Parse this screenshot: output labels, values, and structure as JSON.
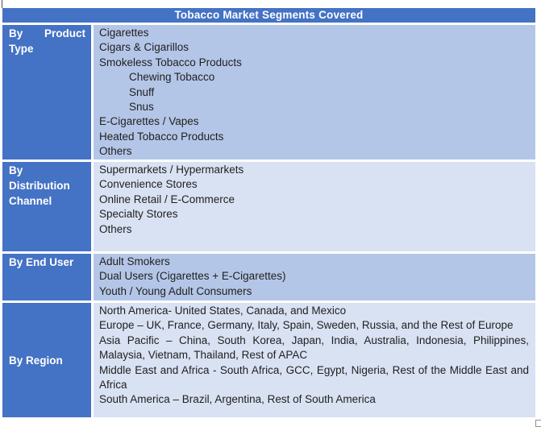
{
  "table": {
    "title": "Tobacco Market Segments Covered",
    "rows": [
      {
        "key": "product-type",
        "label": "By Product Type",
        "band": "a",
        "items": [
          {
            "text": "Cigarettes",
            "indent": false
          },
          {
            "text": "Cigars & Cigarillos",
            "indent": false
          },
          {
            "text": "Smokeless Tobacco Products",
            "indent": false
          },
          {
            "text": "Chewing Tobacco",
            "indent": true
          },
          {
            "text": "Snuff",
            "indent": true
          },
          {
            "text": "Snus",
            "indent": true
          },
          {
            "text": "E-Cigarettes / Vapes",
            "indent": false
          },
          {
            "text": "Heated Tobacco Products",
            "indent": false
          },
          {
            "text": "Others",
            "indent": false
          }
        ]
      },
      {
        "key": "distribution-channel",
        "label": "By Distribution Channel",
        "band": "b",
        "items": [
          {
            "text": "Supermarkets / Hypermarkets",
            "indent": false
          },
          {
            "text": "Convenience Stores",
            "indent": false
          },
          {
            "text": "Online Retail / E-Commerce",
            "indent": false
          },
          {
            "text": "Specialty Stores",
            "indent": false
          },
          {
            "text": "Others",
            "indent": false
          }
        ]
      },
      {
        "key": "end-user",
        "label": "By End User",
        "band": "a",
        "items": [
          {
            "text": "Adult Smokers",
            "indent": false
          },
          {
            "text": "Dual Users (Cigarettes + E-Cigarettes)",
            "indent": false
          },
          {
            "text": "Youth / Young Adult Consumers",
            "indent": false
          }
        ]
      },
      {
        "key": "region",
        "label": "By Region",
        "band": "b",
        "label_valign": "middle",
        "items": [
          {
            "text": "North America- United States, Canada, and Mexico",
            "indent": false
          },
          {
            "text": "Europe – UK, France, Germany, Italy, Spain, Sweden, Russia, and the Rest of Europe",
            "indent": false
          },
          {
            "text": "Asia Pacific – China, South Korea, Japan, India, Australia, Indonesia, Philippines, Malaysia, Vietnam, Thailand, Rest of APAC",
            "indent": false
          },
          {
            "text": "Middle East and Africa - South Africa, GCC, Egypt, Nigeria, Rest of the Middle East and Africa",
            "indent": false
          },
          {
            "text": "South America – Brazil, Argentina, Rest of South America",
            "indent": false
          }
        ]
      }
    ]
  },
  "colors": {
    "header_bg": "#4472C4",
    "label_bg": "#4472C4",
    "band_a_bg": "#B4C6E7",
    "band_b_bg": "#D9E2F3",
    "header_text": "#FFFFFF",
    "body_text": "#1F1F1F"
  }
}
